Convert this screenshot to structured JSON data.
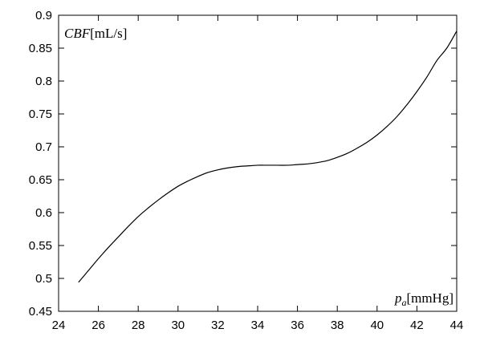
{
  "chart_data": {
    "type": "line",
    "title": "",
    "ylabel": {
      "symbol": "CBF",
      "unit": "[mL/s]"
    },
    "xlabel": {
      "symbol": "p",
      "subscript": "a",
      "unit": "[mmHg]"
    },
    "xlim": [
      24,
      44
    ],
    "ylim": [
      0.45,
      0.9
    ],
    "xticks": [
      24,
      26,
      28,
      30,
      32,
      34,
      36,
      38,
      40,
      42,
      44
    ],
    "yticks": [
      0.45,
      0.5,
      0.55,
      0.6,
      0.65,
      0.7,
      0.75,
      0.8,
      0.85,
      0.9
    ],
    "ytick_labels": [
      "0.45",
      "0.5",
      "0.55",
      "0.6",
      "0.65",
      "0.7",
      "0.75",
      "0.8",
      "0.85",
      "0.9"
    ],
    "grid": false,
    "legend": "none",
    "line_color": "#000000",
    "series": [
      {
        "x": [
          25,
          25.5,
          26,
          26.5,
          27,
          27.5,
          28,
          28.5,
          29,
          29.5,
          30,
          30.5,
          31,
          31.5,
          32,
          32.5,
          33,
          33.5,
          34,
          34.5,
          35,
          35.5,
          36,
          36.5,
          37,
          37.5,
          38,
          38.5,
          39,
          39.5,
          40,
          40.5,
          41,
          41.5,
          42,
          42.5,
          43,
          43.5,
          44
        ],
        "y": [
          0.494,
          0.512,
          0.53,
          0.547,
          0.563,
          0.579,
          0.594,
          0.607,
          0.619,
          0.63,
          0.64,
          0.648,
          0.655,
          0.661,
          0.665,
          0.668,
          0.67,
          0.671,
          0.672,
          0.672,
          0.672,
          0.672,
          0.673,
          0.674,
          0.676,
          0.679,
          0.684,
          0.69,
          0.698,
          0.707,
          0.718,
          0.731,
          0.746,
          0.764,
          0.784,
          0.806,
          0.831,
          0.85,
          0.876
        ]
      }
    ]
  }
}
